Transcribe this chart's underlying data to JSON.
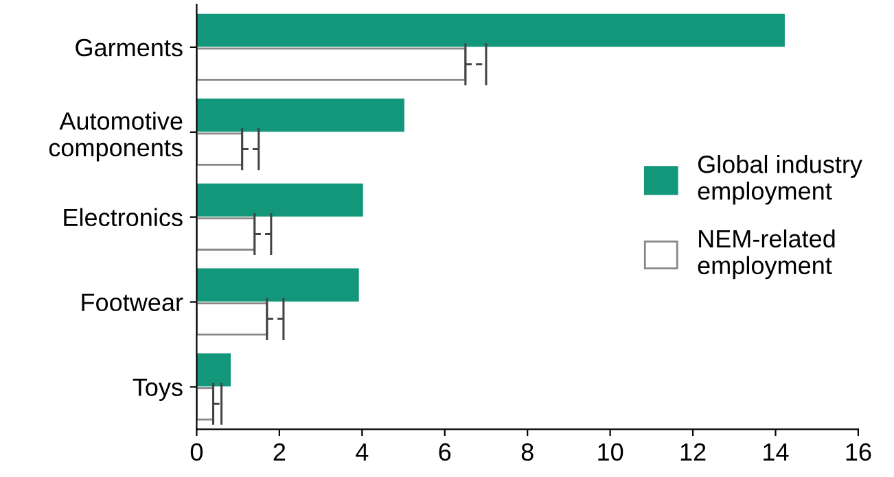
{
  "chart_data": {
    "type": "bar",
    "orientation": "horizontal",
    "categories": [
      "Garments",
      "Automotive\ncomponents",
      "Electronics",
      "Footwear",
      "Toys"
    ],
    "series": [
      {
        "name": "Global industry\nemployment",
        "color": "#12977a",
        "values": [
          14.2,
          5.0,
          4.0,
          3.9,
          0.8
        ]
      },
      {
        "name": "NEM-related\nemployment",
        "color": "#ffffff",
        "values": [
          6.5,
          1.1,
          1.4,
          1.7,
          0.4
        ],
        "errors": [
          [
            6.5,
            7.0
          ],
          [
            1.1,
            1.5
          ],
          [
            1.4,
            1.8
          ],
          [
            1.7,
            2.1
          ],
          [
            0.4,
            0.6
          ]
        ]
      }
    ],
    "xlim": [
      0,
      16
    ],
    "xticks": [
      0,
      2,
      4,
      6,
      8,
      10,
      12,
      14,
      16
    ],
    "grid": false,
    "legend": "right"
  }
}
